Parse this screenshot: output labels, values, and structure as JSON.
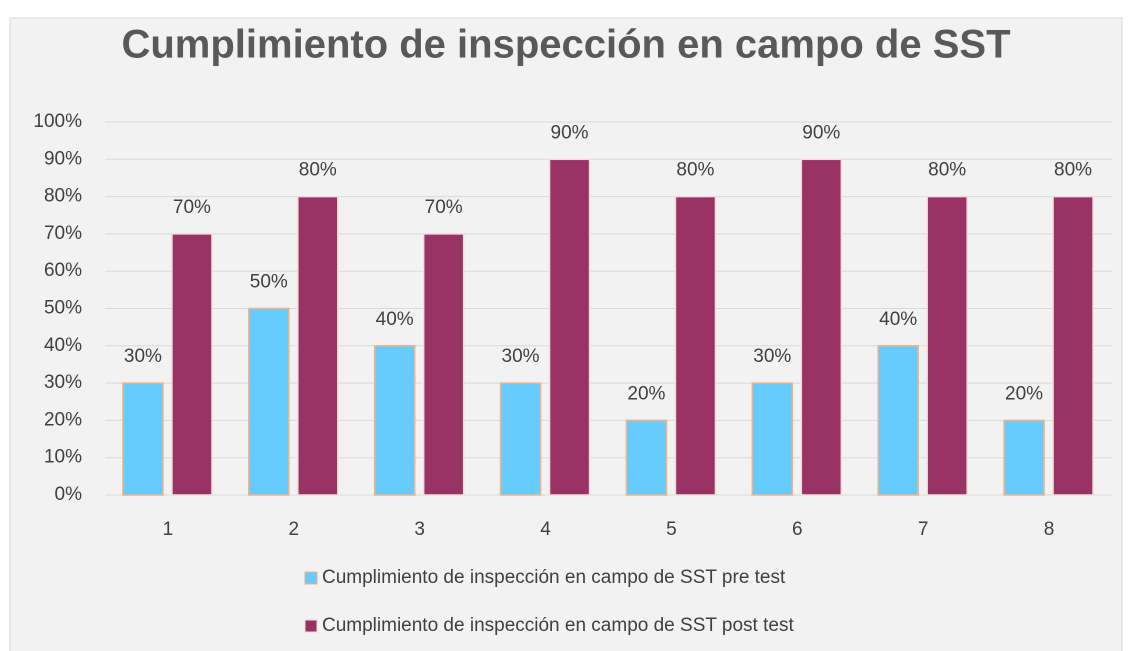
{
  "chart_data": {
    "type": "bar",
    "title": "Cumplimiento de inspección en campo de SST",
    "categories": [
      "1",
      "2",
      "3",
      "4",
      "5",
      "6",
      "7",
      "8"
    ],
    "series": [
      {
        "name": "Cumplimiento de inspección en campo de SST pre test",
        "color": "#66ccff",
        "values": [
          30,
          50,
          40,
          30,
          20,
          30,
          40,
          20
        ],
        "value_labels": [
          "30%",
          "50%",
          "40%",
          "30%",
          "20%",
          "30%",
          "40%",
          "20%"
        ]
      },
      {
        "name": "Cumplimiento de inspección en campo de SST post test",
        "color": "#993366",
        "values": [
          70,
          80,
          70,
          90,
          80,
          90,
          80,
          80
        ],
        "value_labels": [
          "70%",
          "80%",
          "70%",
          "90%",
          "80%",
          "90%",
          "80%",
          "80%"
        ]
      }
    ],
    "ylim": [
      0,
      100
    ],
    "yticks": [
      {
        "value": 0,
        "label": "0%"
      },
      {
        "value": 10,
        "label": "10%"
      },
      {
        "value": 20,
        "label": "20%"
      },
      {
        "value": 30,
        "label": "30%"
      },
      {
        "value": 40,
        "label": "40%"
      },
      {
        "value": 50,
        "label": "50%"
      },
      {
        "value": 60,
        "label": "60%"
      },
      {
        "value": 70,
        "label": "70%"
      },
      {
        "value": 80,
        "label": "80%"
      },
      {
        "value": 90,
        "label": "90%"
      },
      {
        "value": 100,
        "label": "100%"
      }
    ],
    "grid": true,
    "legend": "bottom"
  }
}
